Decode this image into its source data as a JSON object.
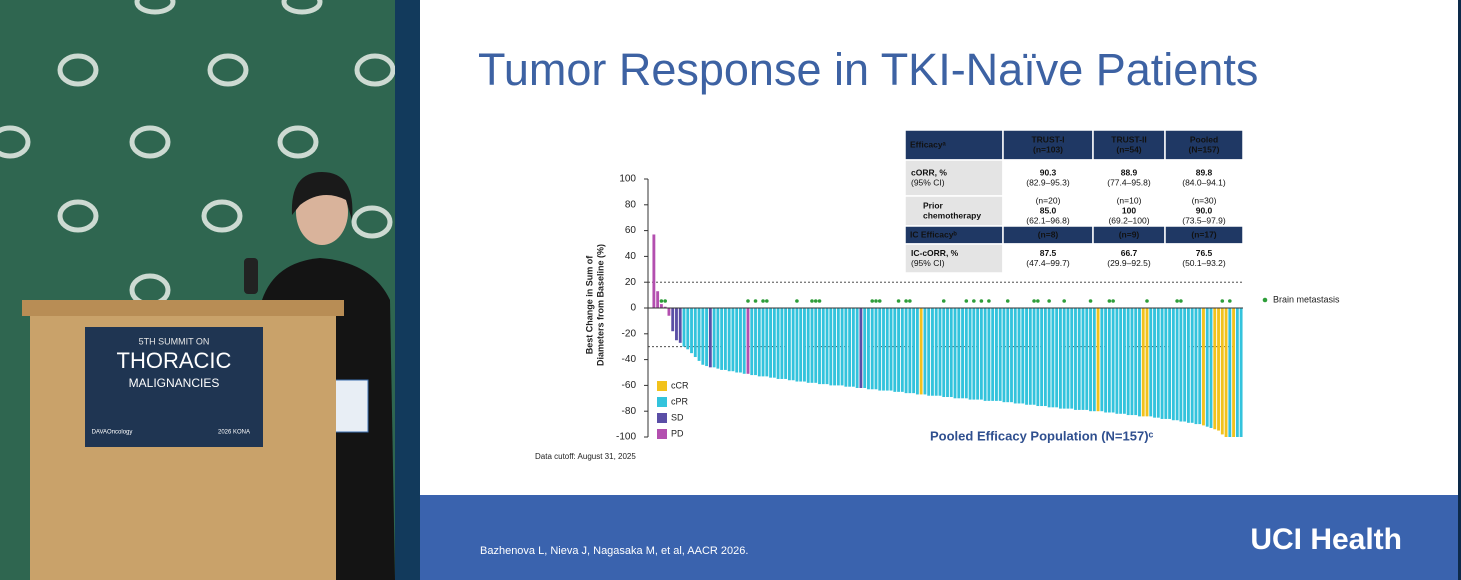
{
  "slide_title": "Tumor Response in TKI-Naïve Patients",
  "podium": {
    "line1": "5TH SUMMIT ON",
    "line2": "THORACIC",
    "line3": "MALIGNANCIES",
    "logo_left": "DAVAOncology",
    "logo_right": "2026 KONA"
  },
  "table": {
    "header": [
      [
        "Efficacyᵃ"
      ],
      [
        "TRUST-I",
        "(n=103)"
      ],
      [
        "TRUST-II",
        "(n=54)"
      ],
      [
        "Pooled",
        "(N=157)"
      ]
    ],
    "rows": [
      [
        [
          "cORR, %",
          "(95% CI)"
        ],
        [
          "90.3",
          "(82.9–95.3)"
        ],
        [
          "88.9",
          "(77.4–95.8)"
        ],
        [
          "89.8",
          "(84.0–94.1)"
        ]
      ],
      [
        [
          "Prior",
          "chemotherapy"
        ],
        [
          "(n=20)",
          "85.0",
          "(62.1–96.8)"
        ],
        [
          "(n=10)",
          "100",
          "(69.2–100)"
        ],
        [
          "(n=30)",
          "90.0",
          "(73.5–97.9)"
        ]
      ],
      [
        [
          "IC Efficacyᵇ"
        ],
        [
          "(n=8)"
        ],
        [
          "(n=9)"
        ],
        [
          "(n=17)"
        ]
      ],
      [
        [
          "IC-cORR, %",
          "(95% CI)"
        ],
        [
          "87.5",
          "(47.4–99.7)"
        ],
        [
          "66.7",
          "(29.9–92.5)"
        ],
        [
          "76.5",
          "(50.1–93.2)"
        ]
      ]
    ]
  },
  "chart_data": {
    "type": "waterfall",
    "title": "Pooled Efficacy Population (N=157)ᶜ",
    "y_label": [
      "Best Change in Sum of",
      "Diameters from Baseline (%)"
    ],
    "note": "Data cutoff: August 31, 2025",
    "ylim": [
      -100,
      100
    ],
    "yticks": [
      100,
      80,
      60,
      40,
      20,
      0,
      -20,
      -40,
      -60,
      -80,
      -100
    ],
    "reference_lines": [
      20,
      -30
    ],
    "legend": [
      {
        "name": "cCR",
        "color": "#f2c21b"
      },
      {
        "name": "cPR",
        "color": "#33c3dc"
      },
      {
        "name": "SD",
        "color": "#5a4ea6"
      },
      {
        "name": "PD",
        "color": "#b34faf"
      }
    ],
    "brain_metastasis": {
      "name": "Brain metastasis",
      "color": "#2e9e3a",
      "bars": [
        2,
        3,
        25,
        27,
        29,
        30,
        38,
        42,
        43,
        44,
        58,
        59,
        60,
        65,
        67,
        68,
        77,
        83,
        85,
        87,
        89,
        94,
        101,
        102,
        105,
        109,
        116,
        121,
        122,
        131,
        139,
        140,
        151,
        153
      ]
    },
    "values": [
      57,
      13,
      3,
      1,
      -6,
      -18,
      -25,
      -27,
      -30,
      -32,
      -35,
      -38,
      -41,
      -44,
      -45,
      -46,
      -46,
      -47,
      -48,
      -48,
      -49,
      -49,
      -50,
      -50,
      -51,
      -51,
      -52,
      -52,
      -53,
      -53,
      -53,
      -54,
      -54,
      -55,
      -55,
      -55,
      -56,
      -56,
      -57,
      -57,
      -57,
      -58,
      -58,
      -58,
      -59,
      -59,
      -59,
      -60,
      -60,
      -60,
      -60,
      -61,
      -61,
      -61,
      -62,
      -62,
      -62,
      -63,
      -63,
      -63,
      -64,
      -64,
      -64,
      -64,
      -65,
      -65,
      -65,
      -66,
      -66,
      -66,
      -67,
      -67,
      -67,
      -68,
      -68,
      -68,
      -68,
      -69,
      -69,
      -69,
      -70,
      -70,
      -70,
      -70,
      -71,
      -71,
      -71,
      -71,
      -72,
      -72,
      -72,
      -72,
      -72,
      -73,
      -73,
      -73,
      -74,
      -74,
      -74,
      -75,
      -75,
      -75,
      -76,
      -76,
      -76,
      -77,
      -77,
      -77,
      -78,
      -78,
      -78,
      -78,
      -79,
      -79,
      -79,
      -79,
      -80,
      -80,
      -80,
      -80,
      -81,
      -81,
      -81,
      -82,
      -82,
      -82,
      -83,
      -83,
      -83,
      -84,
      -84,
      -84,
      -84,
      -85,
      -85,
      -86,
      -86,
      -86,
      -87,
      -87,
      -88,
      -88,
      -89,
      -89,
      -90,
      -90,
      -91,
      -92,
      -93,
      -94,
      -95,
      -98,
      -100,
      -100,
      -100,
      -100,
      -100
    ],
    "response": [
      "PD",
      "PD",
      "PD",
      "PD",
      "PD",
      "SD",
      "SD",
      "SD",
      "cPR",
      "cPR",
      "cPR",
      "cPR",
      "cPR",
      "cPR",
      "cPR",
      "SD",
      "cPR",
      "cPR",
      "cPR",
      "cPR",
      "cPR",
      "cPR",
      "cPR",
      "cPR",
      "cPR",
      "PD",
      "cPR",
      "cPR",
      "cPR",
      "cPR",
      "cPR",
      "cPR",
      "cPR",
      "cPR",
      "cPR",
      "cPR",
      "cPR",
      "cPR",
      "cPR",
      "cPR",
      "cPR",
      "cPR",
      "cPR",
      "cPR",
      "cPR",
      "cPR",
      "cPR",
      "cPR",
      "cPR",
      "cPR",
      "cPR",
      "cPR",
      "cPR",
      "cPR",
      "cPR",
      "SD",
      "cPR",
      "cPR",
      "cPR",
      "cPR",
      "cPR",
      "cPR",
      "cPR",
      "cPR",
      "cPR",
      "cPR",
      "cPR",
      "cPR",
      "cPR",
      "cPR",
      "cPR",
      "cCR",
      "cPR",
      "cPR",
      "cPR",
      "cPR",
      "cPR",
      "cPR",
      "cPR",
      "cPR",
      "cPR",
      "cPR",
      "cPR",
      "cPR",
      "cPR",
      "cPR",
      "cPR",
      "cPR",
      "cPR",
      "cPR",
      "cPR",
      "cPR",
      "cPR",
      "cPR",
      "cPR",
      "cPR",
      "cPR",
      "cPR",
      "cPR",
      "cPR",
      "cPR",
      "cPR",
      "cPR",
      "cPR",
      "cPR",
      "cPR",
      "cPR",
      "cPR",
      "cPR",
      "cPR",
      "cPR",
      "cPR",
      "cPR",
      "cPR",
      "cPR",
      "cPR",
      "cPR",
      "cPR",
      "cCR",
      "cPR",
      "cPR",
      "cPR",
      "cPR",
      "cPR",
      "cPR",
      "cPR",
      "cPR",
      "cPR",
      "cPR",
      "cPR",
      "cCR",
      "cCR",
      "cPR",
      "cPR",
      "cPR",
      "cPR",
      "cPR",
      "cPR",
      "cPR",
      "cPR",
      "cPR",
      "cPR",
      "cPR",
      "cPR",
      "cPR",
      "cPR",
      "cCR",
      "cPR",
      "cPR",
      "cCR",
      "cCR",
      "cCR",
      "cCR",
      "cPR",
      "cCR",
      "cPR",
      "cPR"
    ]
  },
  "footer": {
    "citation": "Bazhenova L, Nieva J, Nagasaka M, et al, AACR 2026.",
    "brand": "UCI Health"
  }
}
